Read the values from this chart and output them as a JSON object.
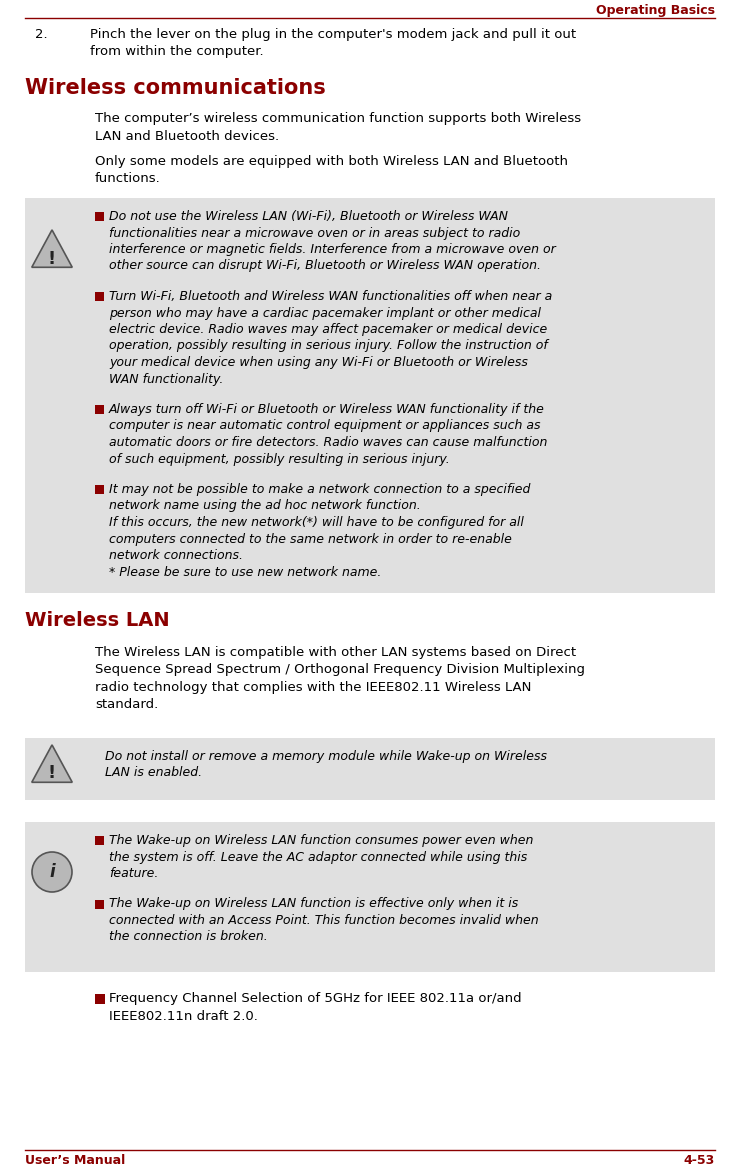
{
  "page_bg": "#ffffff",
  "header_text": "Operating Basics",
  "header_color": "#8B0000",
  "header_line_color": "#8B0000",
  "footer_left": "User’s Manual",
  "footer_right": "4-53",
  "footer_color": "#8B0000",
  "footer_line_color": "#8B0000",
  "step2_line1": "Pinch the lever on the plug in the computer's modem jack and pull it out",
  "step2_line2": "from within the computer.",
  "section1_title": "Wireless communications",
  "section1_title_color": "#8B0000",
  "section1_para1_lines": [
    "The computer’s wireless communication function supports both Wireless",
    "LAN and Bluetooth devices."
  ],
  "section1_para2_lines": [
    "Only some models are equipped with both Wireless LAN and Bluetooth",
    "functions."
  ],
  "warning_box1_bg": "#e0e0e0",
  "warning_bullet_lines": [
    [
      "Do not use the Wireless LAN (Wi-Fi), Bluetooth or Wireless WAN",
      "functionalities near a microwave oven or in areas subject to radio",
      "interference or magnetic fields. Interference from a microwave oven or",
      "other source can disrupt Wi-Fi, Bluetooth or Wireless WAN operation."
    ],
    [
      "Turn Wi-Fi, Bluetooth and Wireless WAN functionalities off when near a",
      "person who may have a cardiac pacemaker implant or other medical",
      "electric device. Radio waves may affect pacemaker or medical device",
      "operation, possibly resulting in serious injury. Follow the instruction of",
      "your medical device when using any Wi-Fi or Bluetooth or Wireless",
      "WAN functionality."
    ],
    [
      "Always turn off Wi-Fi or Bluetooth or Wireless WAN functionality if the",
      "computer is near automatic control equipment or appliances such as",
      "automatic doors or fire detectors. Radio waves can cause malfunction",
      "of such equipment, possibly resulting in serious injury."
    ],
    [
      "It may not be possible to make a network connection to a specified",
      "network name using the ad hoc network function.",
      "If this occurs, the new network(*) will have to be configured for all",
      "computers connected to the same network in order to re-enable",
      "network connections.",
      "* Please be sure to use new network name."
    ]
  ],
  "section2_title": "Wireless LAN",
  "section2_title_color": "#8B0000",
  "section2_para1_lines": [
    "The Wireless LAN is compatible with other LAN systems based on Direct",
    "Sequence Spread Spectrum / Orthogonal Frequency Division Multiplexing",
    "radio technology that complies with the IEEE802.11 Wireless LAN",
    "standard."
  ],
  "warning2_lines": [
    "Do not install or remove a memory module while Wake-up on Wireless",
    "LAN is enabled."
  ],
  "info_bullet_lines": [
    [
      "The Wake-up on Wireless LAN function consumes power even when",
      "the system is off. Leave the AC adaptor connected while using this",
      "feature."
    ],
    [
      "The Wake-up on Wireless LAN function is effective only when it is",
      "connected with an Access Point. This function becomes invalid when",
      "the connection is broken."
    ]
  ],
  "freq_lines": [
    "Frequency Channel Selection of 5GHz for IEEE 802.11a or/and",
    "IEEE802.11n draft 2.0."
  ],
  "bullet_color": "#8B0000",
  "text_color": "#000000"
}
